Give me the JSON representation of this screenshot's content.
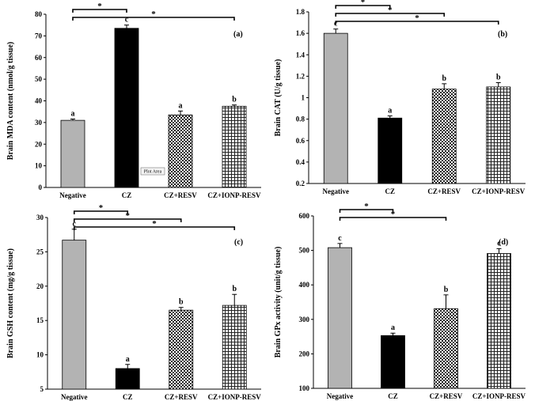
{
  "chart_data": [
    {
      "type": "bar",
      "panel_label": "(a)",
      "ylabel": "Brain MDA content (nmol/g tissue)",
      "ylim": [
        0,
        80
      ],
      "yticks": [
        "0",
        "10",
        "20",
        "30",
        "40",
        "50",
        "60",
        "70",
        "80"
      ],
      "categories": [
        "Negative",
        "CZ",
        "CZ+RESV",
        "CZ+IONP-RESV"
      ],
      "values": [
        31,
        73.5,
        33.5,
        37.5
      ],
      "errors": [
        0.6,
        1.5,
        1.8,
        0.6
      ],
      "letters": [
        "a",
        "c",
        "a",
        "b"
      ],
      "significance": [
        {
          "from": 0,
          "to": 1,
          "label": "*"
        },
        {
          "from": 0,
          "to": 3,
          "label": "*"
        }
      ],
      "annotation": "Plot Area"
    },
    {
      "type": "bar",
      "panel_label": "(b)",
      "ylabel": "Brain CAT (U/g tissue)",
      "ylim": [
        0.2,
        1.8
      ],
      "yticks": [
        "0.2",
        "0.4",
        "0.6",
        "0.8",
        "1",
        "1.2",
        "1.4",
        "1.6",
        "1.8"
      ],
      "categories": [
        "Negative",
        "CZ",
        "CZ+RESV",
        "CZ+IONP-RESV"
      ],
      "values": [
        1.6,
        0.81,
        1.08,
        1.1
      ],
      "errors": [
        0.04,
        0.02,
        0.05,
        0.04
      ],
      "letters": [
        "c",
        "a",
        "b",
        "b"
      ],
      "significance": [
        {
          "from": 0,
          "to": 1,
          "label": "*"
        },
        {
          "from": 0,
          "to": 2,
          "label": "*"
        },
        {
          "from": 0,
          "to": 3,
          "label": "*"
        }
      ]
    },
    {
      "type": "bar",
      "panel_label": "(c)",
      "ylabel": "Brain GSH content (mg/g tissue)",
      "ylim": [
        5,
        30
      ],
      "yticks": [
        "5",
        "10",
        "15",
        "20",
        "25",
        "30"
      ],
      "categories": [
        "Negative",
        "CZ",
        "CZ+RESV",
        "CZ+IONP-RESV"
      ],
      "values": [
        26.7,
        8,
        16.5,
        17.2
      ],
      "errors": [
        1.6,
        0.6,
        0.4,
        1.6
      ],
      "letters": [
        "c",
        "a",
        "b",
        "b"
      ],
      "significance": [
        {
          "from": 0,
          "to": 1,
          "label": "*"
        },
        {
          "from": 0,
          "to": 2,
          "label": "*"
        },
        {
          "from": 0,
          "to": 3,
          "label": "*"
        }
      ]
    },
    {
      "type": "bar",
      "panel_label": "(d)",
      "ylabel": "Brain GPx activity (unit/g tissue)",
      "ylim": [
        100,
        600
      ],
      "yticks": [
        "100",
        "200",
        "300",
        "400",
        "500",
        "600"
      ],
      "categories": [
        "Negative",
        "CZ",
        "CZ+RESV",
        "CZ+IONP-RESV"
      ],
      "values": [
        508,
        253,
        331,
        491
      ],
      "errors": [
        12,
        7,
        40,
        14
      ],
      "letters": [
        "c",
        "a",
        "b",
        "c"
      ],
      "significance": [
        {
          "from": 0,
          "to": 1,
          "label": "*"
        },
        {
          "from": 0,
          "to": 2,
          "label": "*"
        }
      ]
    }
  ]
}
